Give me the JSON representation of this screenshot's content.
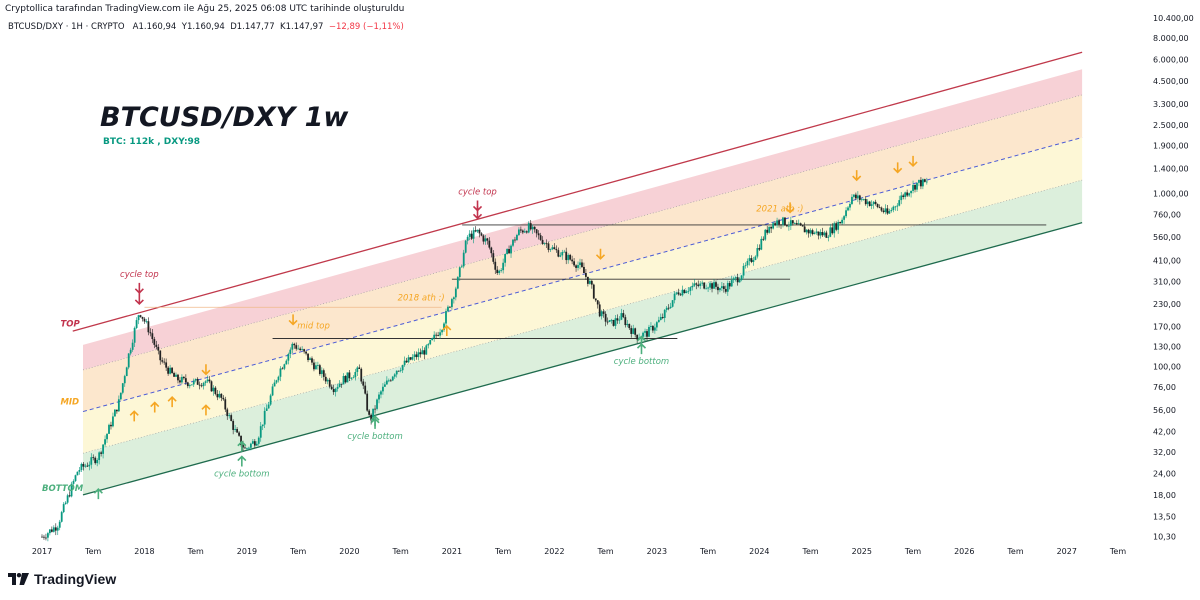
{
  "header": {
    "attribution": "Cryptollica tarafından TradingView.com ile Ağu 25, 2025 06:08 UTC tarihinde oluşturuldu",
    "symbol": "BTCUSD/DXY · 1H · CRYPTO",
    "open": "A1.160,94",
    "high": "Y1.160,94",
    "low": "D1.147,77",
    "close": "K1.147,97",
    "change": "−12,89 (−1,11%)"
  },
  "footer": {
    "brand": "TradingView"
  },
  "colors": {
    "top_band": "#f6c9cf",
    "upper_band": "#fbe3c4",
    "mid_band": "#fdf6cf",
    "bottom_band": "#d6ecd6",
    "upper_line": "#c0394b",
    "lower_line": "#1f6b4e",
    "mid_line": "#4a5bd6",
    "candle_up": "#089981",
    "candle": "#222222",
    "red_annot": "#c2334d",
    "orange_annot": "#f5a623",
    "green_annot": "#4caf7d"
  },
  "chart_data": {
    "type": "line",
    "title": "BTCUSD/DXY 1w",
    "subtitle": "BTC: 112k , DXY:98",
    "y_scale": "log",
    "y_tick_labels": [
      "10.400,00",
      "8.000,00",
      "6.000,00",
      "4.500,00",
      "3.300,00",
      "2.500,00",
      "1.900,00",
      "1.400,00",
      "1.000,00",
      "760,00",
      "560,00",
      "410,00",
      "310,00",
      "230,00",
      "170,00",
      "130,00",
      "100,00",
      "76,00",
      "56,00",
      "42,00",
      "32,00",
      "24,00",
      "18,00",
      "13,50",
      "10,30"
    ],
    "y_tick_values": [
      10400,
      8000,
      6000,
      4500,
      3300,
      2500,
      1900,
      1400,
      1000,
      760,
      560,
      410,
      310,
      230,
      170,
      130,
      100,
      76,
      56,
      42,
      32,
      24,
      18,
      13.5,
      10.3
    ],
    "x_tick_labels": [
      "2017",
      "Tem",
      "2018",
      "Tem",
      "2019",
      "Tem",
      "2020",
      "Tem",
      "2021",
      "Tem",
      "2022",
      "Tem",
      "2023",
      "Tem",
      "2024",
      "Tem",
      "2025",
      "Tem",
      "2026",
      "Tem",
      "2027",
      "Tem"
    ],
    "x_tick_values": [
      2017.0,
      2017.5,
      2018.0,
      2018.5,
      2019.0,
      2019.5,
      2020.0,
      2020.5,
      2021.0,
      2021.5,
      2022.0,
      2022.5,
      2023.0,
      2023.5,
      2024.0,
      2024.5,
      2025.0,
      2025.5,
      2026.0,
      2026.5,
      2027.0,
      2027.5
    ],
    "xlim": [
      2017.0,
      2027.5
    ],
    "ylim": [
      9.6,
      11000
    ],
    "price_x": [
      2017.0,
      2017.15,
      2017.35,
      2017.55,
      2017.75,
      2017.85,
      2017.95,
      2018.05,
      2018.15,
      2018.3,
      2018.45,
      2018.6,
      2018.75,
      2018.9,
      2018.98,
      2019.1,
      2019.3,
      2019.45,
      2019.55,
      2019.7,
      2019.85,
      2019.95,
      2020.1,
      2020.2,
      2020.3,
      2020.45,
      2020.6,
      2020.75,
      2020.9,
      2021.05,
      2021.15,
      2021.25,
      2021.35,
      2021.45,
      2021.55,
      2021.65,
      2021.75,
      2021.85,
      2022.0,
      2022.1,
      2022.25,
      2022.35,
      2022.45,
      2022.55,
      2022.65,
      2022.8,
      2022.9,
      2023.05,
      2023.2,
      2023.35,
      2023.5,
      2023.65,
      2023.8,
      2023.95,
      2024.1,
      2024.2,
      2024.35,
      2024.5,
      2024.65,
      2024.8,
      2024.9,
      2025.0,
      2025.15,
      2025.25,
      2025.4,
      2025.55,
      2025.65
    ],
    "price_y": [
      10.3,
      12,
      25,
      30,
      62,
      120,
      210,
      160,
      110,
      85,
      80,
      82,
      65,
      40,
      33,
      38,
      90,
      135,
      120,
      95,
      75,
      85,
      95,
      48,
      70,
      95,
      110,
      125,
      170,
      300,
      560,
      600,
      520,
      340,
      470,
      600,
      640,
      560,
      470,
      440,
      380,
      300,
      200,
      175,
      195,
      150,
      155,
      190,
      270,
      290,
      300,
      280,
      330,
      440,
      660,
      700,
      650,
      600,
      580,
      700,
      960,
      930,
      850,
      760,
      980,
      1160,
      1148
    ],
    "channel": {
      "upper_start": [
        2017.3,
        160
      ],
      "upper_end": [
        2027.15,
        6600
      ],
      "lower_start": [
        2017.4,
        18
      ],
      "lower_end": [
        2027.15,
        680
      ]
    },
    "horizontal_levels": [
      {
        "y": 660,
        "x_start": 2021.1,
        "x_end": 2026.8
      },
      {
        "y": 320,
        "x_start": 2021.0,
        "x_end": 2024.3
      },
      {
        "y": 145,
        "x_start": 2019.25,
        "x_end": 2023.2
      },
      {
        "y": 220,
        "x_start": 2018.0,
        "x_end": 2020.9
      }
    ],
    "band_labels": [
      {
        "text": "TOP",
        "x": 2017.18,
        "y": 170
      },
      {
        "text": "MID",
        "x": 2017.18,
        "y": 60
      },
      {
        "text": "BOTTOM",
        "x": 2017.0,
        "y": 19
      }
    ],
    "annotations": [
      {
        "text": "cycle top",
        "x": 2017.95,
        "y": 330,
        "color": "red"
      },
      {
        "text": "cycle top",
        "x": 2021.25,
        "y": 990,
        "color": "red"
      },
      {
        "text": "cycle bottom",
        "x": 2018.95,
        "y": 23,
        "color": "green"
      },
      {
        "text": "cycle bottom",
        "x": 2020.25,
        "y": 38,
        "color": "green"
      },
      {
        "text": "cycle bottom",
        "x": 2022.85,
        "y": 103,
        "color": "green"
      },
      {
        "text": "mid top",
        "x": 2019.65,
        "y": 166,
        "color": "orange"
      },
      {
        "text": "2018 ath :)",
        "x": 2020.7,
        "y": 240,
        "color": "orange"
      },
      {
        "text": "2021 ath :)",
        "x": 2024.2,
        "y": 790,
        "color": "orange"
      }
    ]
  }
}
